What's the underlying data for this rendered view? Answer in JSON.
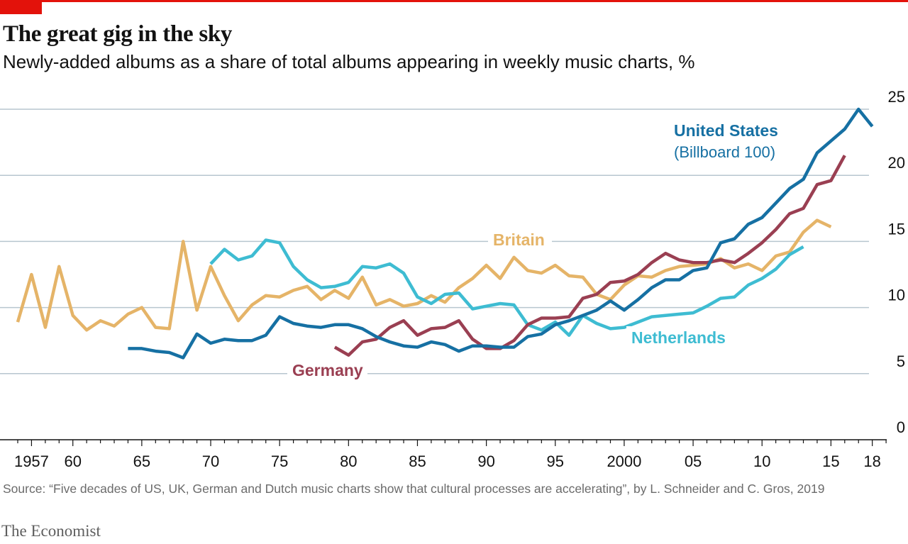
{
  "header": {
    "title": "The great gig in the sky",
    "subtitle": "Newly-added albums as a share of total albums appearing in weekly music charts, %"
  },
  "footer": {
    "source": "Source: “Five decades of US, UK, German and Dutch music charts show that cultural processes are accelerating”, by L. Schneider and C. Gros, 2019",
    "brand": "The Economist"
  },
  "chart_data": {
    "type": "line",
    "ylim": [
      0,
      25
    ],
    "yticks": [
      "0",
      "5",
      "10",
      "15",
      "20",
      "25"
    ],
    "xticks": [
      {
        "year": 1957,
        "label": "1957"
      },
      {
        "year": 1960,
        "label": "60"
      },
      {
        "year": 1965,
        "label": "65"
      },
      {
        "year": 1970,
        "label": "70"
      },
      {
        "year": 1975,
        "label": "75"
      },
      {
        "year": 1980,
        "label": "80"
      },
      {
        "year": 1985,
        "label": "85"
      },
      {
        "year": 1990,
        "label": "90"
      },
      {
        "year": 1995,
        "label": "95"
      },
      {
        "year": 2000,
        "label": "2000"
      },
      {
        "year": 2005,
        "label": "05"
      },
      {
        "year": 2010,
        "label": "10"
      },
      {
        "year": 2015,
        "label": "15"
      },
      {
        "year": 2018,
        "label": "18"
      }
    ],
    "grid": true,
    "series": [
      {
        "name": "Britain",
        "color": "#e5b468",
        "x": [
          1956,
          1957,
          1958,
          1959,
          1960,
          1961,
          1962,
          1963,
          1964,
          1965,
          1966,
          1967,
          1968,
          1969,
          1970,
          1971,
          1972,
          1973,
          1974,
          1975,
          1976,
          1977,
          1978,
          1979,
          1980,
          1981,
          1982,
          1983,
          1984,
          1985,
          1986,
          1987,
          1988,
          1989,
          1990,
          1991,
          1992,
          1993,
          1994,
          1995,
          1996,
          1997,
          1998,
          1999,
          2000,
          2001,
          2002,
          2003,
          2004,
          2005,
          2006,
          2007,
          2008,
          2009,
          2010,
          2011,
          2012,
          2013,
          2014,
          2015
        ],
        "values": [
          8.9,
          12.5,
          8.5,
          13.1,
          9.4,
          8.3,
          9.0,
          8.6,
          9.5,
          10.0,
          8.5,
          8.4,
          15.0,
          9.8,
          13.1,
          10.9,
          9.0,
          10.2,
          10.9,
          10.8,
          11.3,
          11.6,
          10.6,
          11.3,
          10.7,
          12.3,
          10.2,
          10.6,
          10.1,
          10.3,
          10.9,
          10.4,
          11.5,
          12.2,
          13.2,
          12.2,
          13.8,
          12.8,
          12.6,
          13.2,
          12.4,
          12.3,
          11.0,
          10.6,
          11.7,
          12.4,
          12.3,
          12.8,
          13.1,
          13.2,
          13.3,
          13.7,
          13.0,
          13.3,
          12.8,
          13.9,
          14.2,
          15.7,
          16.6,
          16.1
        ]
      },
      {
        "name": "Netherlands",
        "color": "#3ebcd2",
        "x": [
          1970,
          1971,
          1972,
          1973,
          1974,
          1975,
          1976,
          1977,
          1978,
          1979,
          1980,
          1981,
          1982,
          1983,
          1984,
          1985,
          1986,
          1987,
          1988,
          1989,
          1990,
          1991,
          1992,
          1993,
          1994,
          1995,
          1996,
          1997,
          1998,
          1999,
          2000,
          2001,
          2002,
          2003,
          2004,
          2005,
          2006,
          2007,
          2008,
          2009,
          2010,
          2011,
          2012,
          2013
        ],
        "values": [
          13.3,
          14.4,
          13.6,
          13.9,
          15.1,
          14.9,
          13.1,
          12.1,
          11.5,
          11.6,
          11.9,
          13.1,
          13.0,
          13.3,
          12.6,
          10.8,
          10.3,
          11.0,
          11.1,
          9.9,
          10.1,
          10.3,
          10.2,
          8.7,
          8.3,
          8.9,
          7.9,
          9.4,
          8.8,
          8.4,
          8.5,
          8.9,
          9.3,
          9.4,
          9.5,
          9.6,
          10.1,
          10.7,
          10.8,
          11.7,
          12.2,
          12.9,
          14.0,
          14.6
        ]
      },
      {
        "name": "Germany",
        "color": "#9a3f52",
        "x": [
          1979,
          1980,
          1981,
          1982,
          1983,
          1984,
          1985,
          1986,
          1987,
          1988,
          1989,
          1990,
          1991,
          1992,
          1993,
          1994,
          1995,
          1996,
          1997,
          1998,
          1999,
          2000,
          2001,
          2002,
          2003,
          2004,
          2005,
          2006,
          2007,
          2008,
          2009,
          2010,
          2011,
          2012,
          2013,
          2014,
          2015,
          2016
        ],
        "values": [
          7.0,
          6.4,
          7.4,
          7.6,
          8.5,
          9.0,
          7.9,
          8.4,
          8.5,
          9.0,
          7.6,
          6.9,
          6.9,
          7.5,
          8.7,
          9.2,
          9.2,
          9.3,
          10.7,
          11.0,
          11.9,
          12.0,
          12.5,
          13.4,
          14.1,
          13.6,
          13.4,
          13.4,
          13.6,
          13.4,
          14.1,
          14.9,
          15.9,
          17.1,
          17.5,
          19.3,
          19.6,
          21.5
        ]
      },
      {
        "name": "United States",
        "color": "#1670a3",
        "x": [
          1964,
          1965,
          1966,
          1967,
          1968,
          1969,
          1970,
          1971,
          1972,
          1973,
          1974,
          1975,
          1976,
          1977,
          1978,
          1979,
          1980,
          1981,
          1982,
          1983,
          1984,
          1985,
          1986,
          1987,
          1988,
          1989,
          1990,
          1991,
          1992,
          1993,
          1994,
          1995,
          1996,
          1997,
          1998,
          1999,
          2000,
          2001,
          2002,
          2003,
          2004,
          2005,
          2006,
          2007,
          2008,
          2009,
          2010,
          2011,
          2012,
          2013,
          2014,
          2015,
          2016,
          2017,
          2018
        ],
        "values": [
          6.9,
          6.9,
          6.7,
          6.6,
          6.2,
          8.0,
          7.3,
          7.6,
          7.5,
          7.5,
          7.9,
          9.3,
          8.8,
          8.6,
          8.5,
          8.7,
          8.7,
          8.4,
          7.8,
          7.4,
          7.1,
          7.0,
          7.4,
          7.2,
          6.7,
          7.1,
          7.1,
          7.0,
          7.0,
          7.8,
          8.0,
          8.7,
          9.0,
          9.4,
          9.8,
          10.5,
          9.8,
          10.6,
          11.5,
          12.1,
          12.1,
          12.8,
          13.0,
          14.9,
          15.2,
          16.3,
          16.8,
          17.9,
          19.0,
          19.7,
          21.7,
          22.6,
          23.5,
          25.0,
          23.7
        ]
      }
    ],
    "annotations": {
      "united_states": "United States",
      "united_states_sub": "(Billboard 100)",
      "britain": "Britain",
      "netherlands": "Netherlands",
      "germany": "Germany"
    }
  }
}
